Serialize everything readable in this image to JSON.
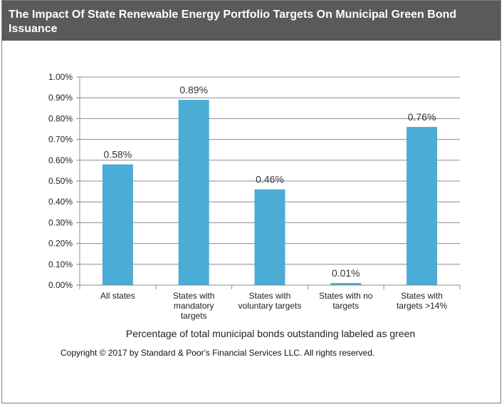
{
  "chart_data": {
    "type": "bar",
    "title": "The Impact Of State Renewable Energy Portfolio Targets On Municipal Green Bond Issuance",
    "xlabel": "Percentage of total municipal bonds outstanding labeled as green",
    "ylabel": "",
    "categories": [
      [
        "All states"
      ],
      [
        "States with",
        "mandatory",
        "targets"
      ],
      [
        "States with",
        "voluntary targets"
      ],
      [
        "States with no",
        "targets"
      ],
      [
        "States with",
        "targets >14%"
      ]
    ],
    "values": [
      0.58,
      0.89,
      0.46,
      0.01,
      0.76
    ],
    "data_labels": [
      "0.58%",
      "0.89%",
      "0.46%",
      "0.01%",
      "0.76%"
    ],
    "ylim": [
      0,
      1.0
    ],
    "yticks": [
      0.0,
      0.1,
      0.2,
      0.3,
      0.4,
      0.5,
      0.6,
      0.7,
      0.8,
      0.9,
      1.0
    ],
    "ytick_labels": [
      "0.00%",
      "0.10%",
      "0.20%",
      "0.30%",
      "0.40%",
      "0.50%",
      "0.60%",
      "0.70%",
      "0.80%",
      "0.90%",
      "1.00%"
    ],
    "grid": true,
    "legend": "none",
    "colors": {
      "bar": "#4bacd6",
      "grid": "#8c8c8c",
      "axis": "#8c8c8c"
    }
  },
  "copyright": "Copyright © 2017 by Standard & Poor's Financial Services LLC. All rights reserved."
}
